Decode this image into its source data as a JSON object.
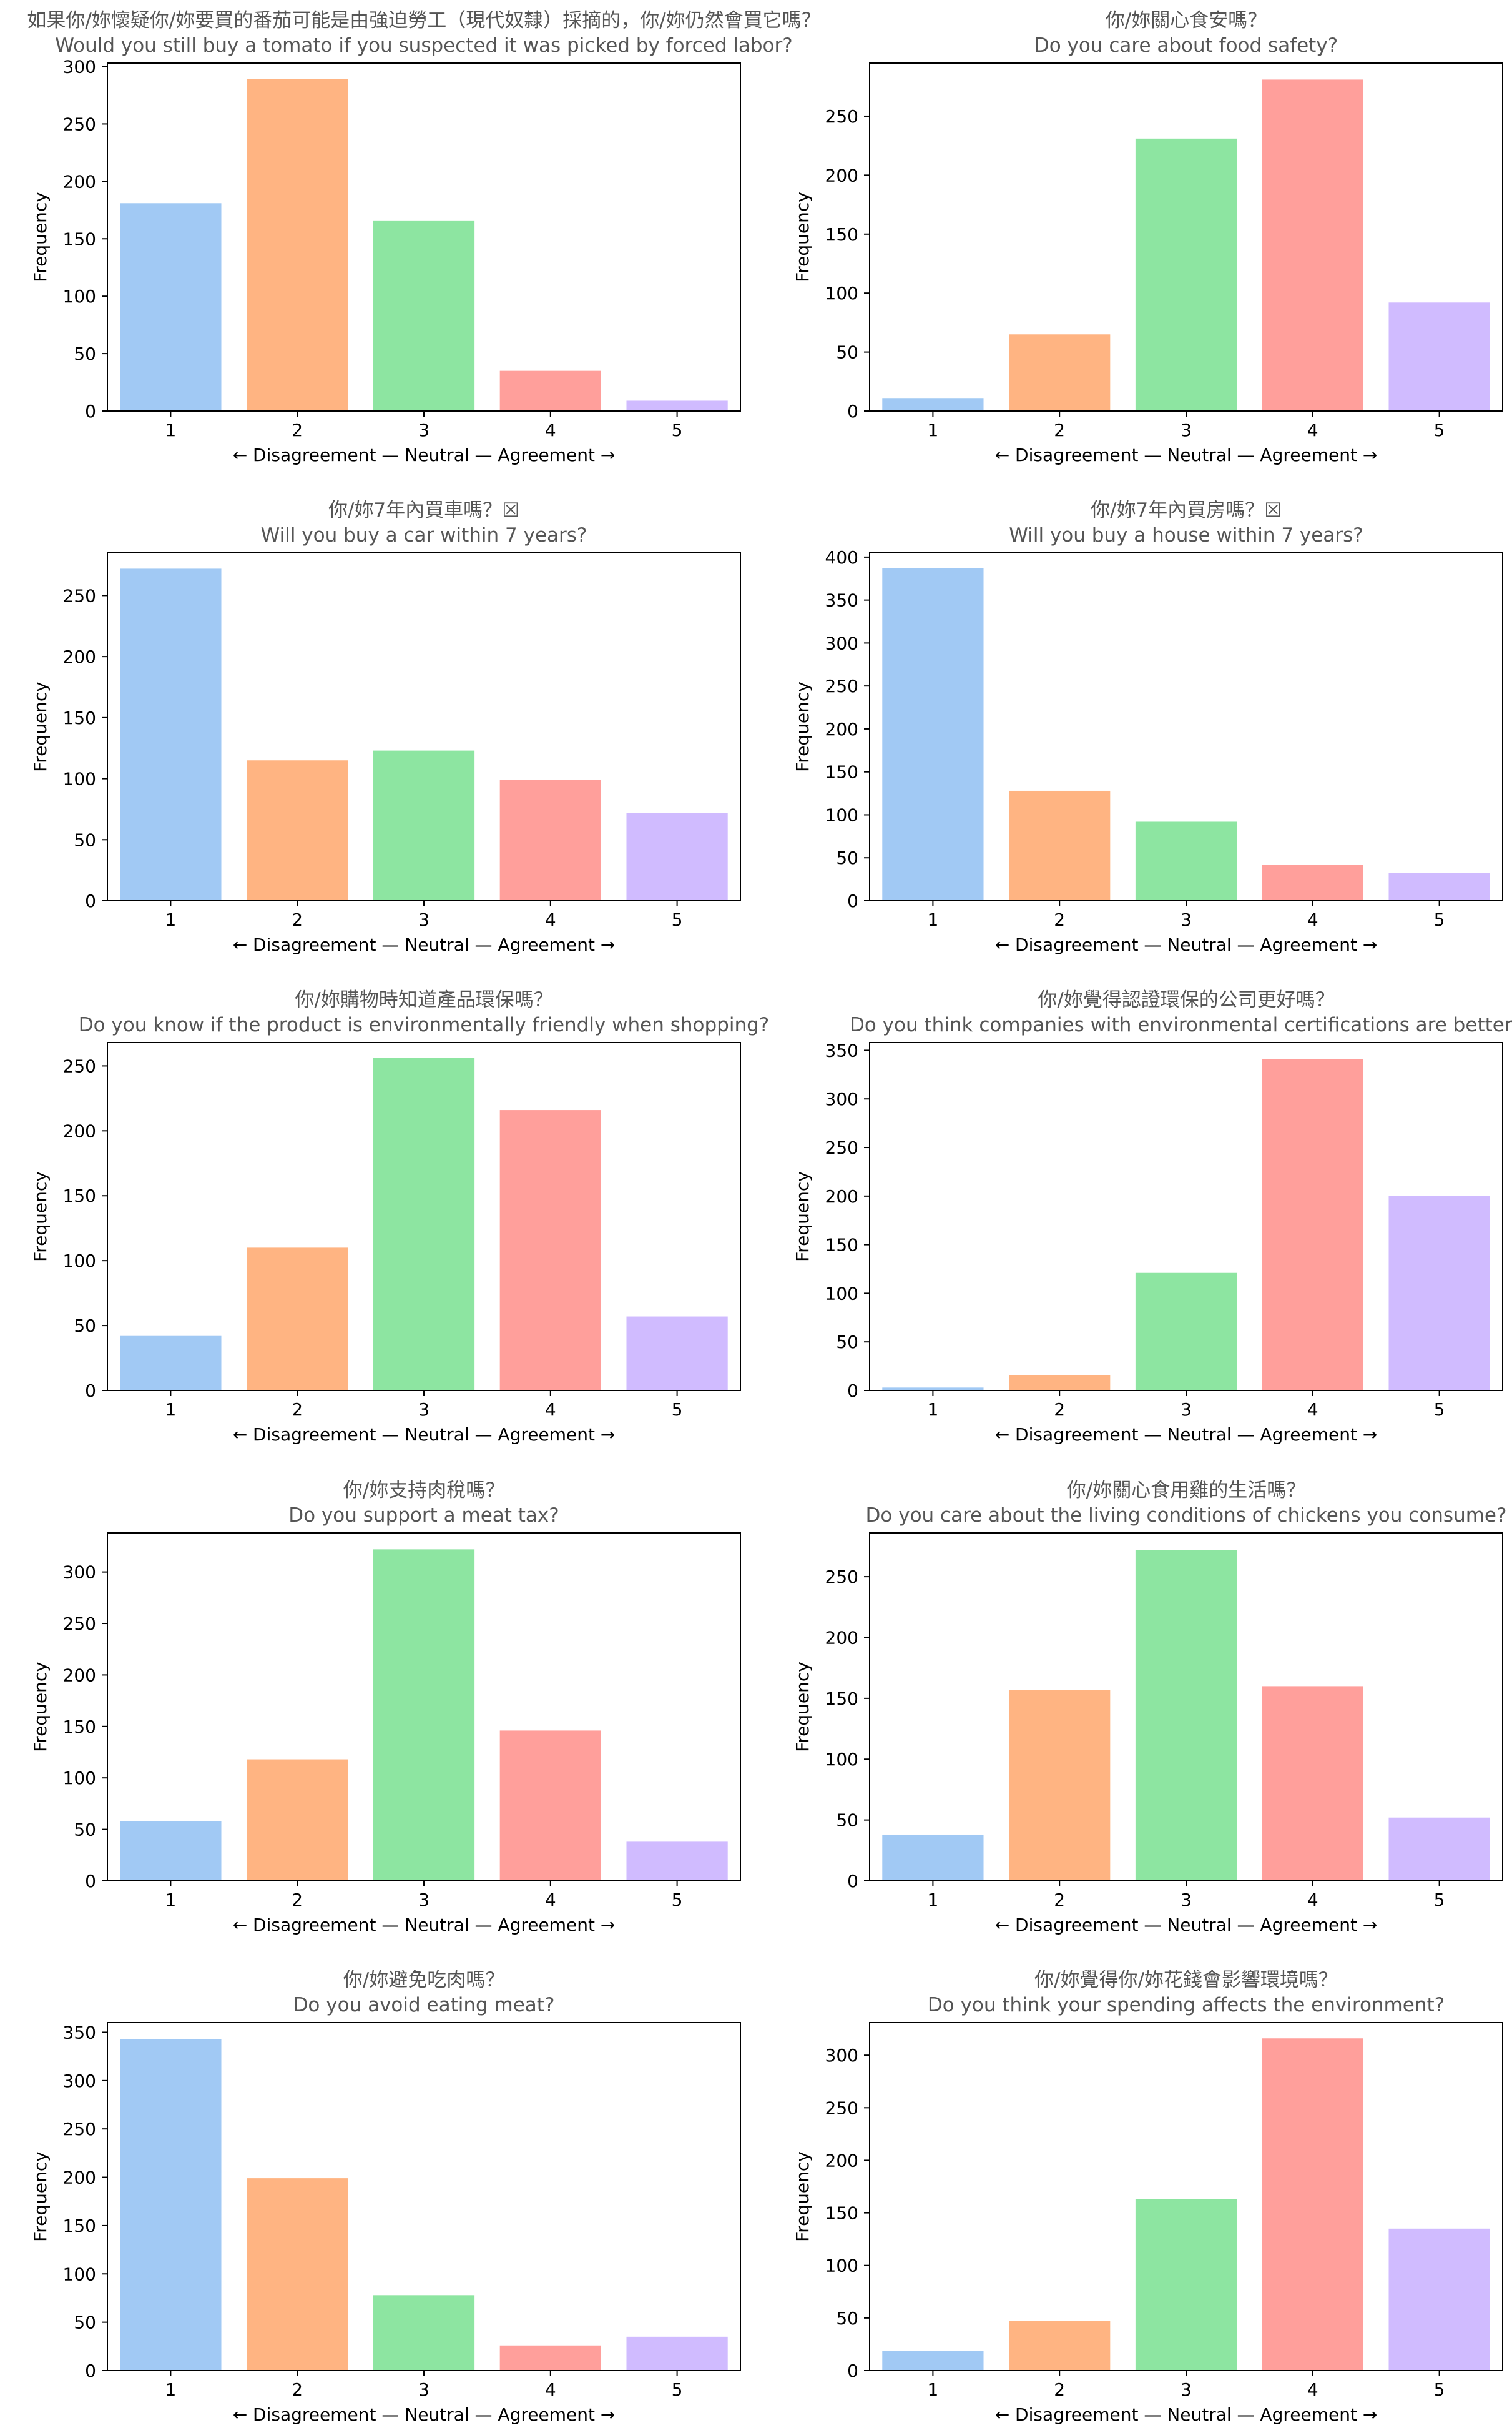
{
  "figure": {
    "shared_xlabel": "← Disagreement — Neutral — Agreement →",
    "shared_ylabel": "Frequency",
    "bar_colors": [
      "#a1c9f4",
      "#ffb482",
      "#8de5a1",
      "#ff9f9b",
      "#d0bbff"
    ],
    "missing_glyph": "☒"
  },
  "chart_data": [
    {
      "type": "bar",
      "title_zh": "如果你/妳懷疑你/妳要買的番茄可能是由強迫勞工（現代奴隸）採摘的，你/妳仍然會買它嗎？",
      "title_en": "Would you still buy a tomato if you suspected it was picked by forced labor?",
      "categories": [
        "1",
        "2",
        "3",
        "4",
        "5"
      ],
      "values": [
        181,
        289,
        166,
        35,
        9
      ],
      "ylim": [
        0,
        303
      ],
      "yticks": [
        0,
        50,
        100,
        150,
        200,
        250,
        300
      ],
      "xlabel": "← Disagreement — Neutral — Agreement →",
      "ylabel": "Frequency",
      "grid": false
    },
    {
      "type": "bar",
      "title_zh": "你/妳關心食安嗎？",
      "title_en": "Do you care about food safety?",
      "categories": [
        "1",
        "2",
        "3",
        "4",
        "5"
      ],
      "values": [
        11,
        65,
        231,
        281,
        92
      ],
      "ylim": [
        0,
        295
      ],
      "yticks": [
        0,
        50,
        100,
        150,
        200,
        250
      ],
      "xlabel": "← Disagreement — Neutral — Agreement →",
      "ylabel": "Frequency",
      "grid": false
    },
    {
      "type": "bar",
      "title_zh": "你/妳7年內買車嗎？",
      "title_en": "Will you buy a car within 7 years?",
      "categories": [
        "1",
        "2",
        "3",
        "4",
        "5"
      ],
      "values": [
        272,
        115,
        123,
        99,
        72
      ],
      "ylim": [
        0,
        285
      ],
      "yticks": [
        0,
        50,
        100,
        150,
        200,
        250
      ],
      "xlabel": "← Disagreement — Neutral — Agreement →",
      "ylabel": "Frequency",
      "grid": false
    },
    {
      "type": "bar",
      "title_zh": "你/妳7年內買房嗎？",
      "title_en": "Will you buy a house within 7 years?",
      "categories": [
        "1",
        "2",
        "3",
        "4",
        "5"
      ],
      "values": [
        387,
        128,
        92,
        42,
        32
      ],
      "ylim": [
        0,
        405
      ],
      "yticks": [
        0,
        50,
        100,
        150,
        200,
        250,
        300,
        350,
        400
      ],
      "xlabel": "← Disagreement — Neutral — Agreement →",
      "ylabel": "Frequency",
      "grid": false
    },
    {
      "type": "bar",
      "title_zh": "你/妳購物時知道產品環保嗎？",
      "title_en": "Do you know if the product is environmentally friendly when shopping?",
      "categories": [
        "1",
        "2",
        "3",
        "4",
        "5"
      ],
      "values": [
        42,
        110,
        256,
        216,
        57
      ],
      "ylim": [
        0,
        268
      ],
      "yticks": [
        0,
        50,
        100,
        150,
        200,
        250
      ],
      "xlabel": "← Disagreement — Neutral — Agreement →",
      "ylabel": "Frequency",
      "grid": false
    },
    {
      "type": "bar",
      "title_zh": "你/妳覺得認證環保的公司更好嗎？",
      "title_en": "Do you think companies with environmental certifications are better?",
      "categories": [
        "1",
        "2",
        "3",
        "4",
        "5"
      ],
      "values": [
        3,
        16,
        121,
        341,
        200
      ],
      "ylim": [
        0,
        358
      ],
      "yticks": [
        0,
        50,
        100,
        150,
        200,
        250,
        300,
        350
      ],
      "xlabel": "← Disagreement — Neutral — Agreement →",
      "ylabel": "Frequency",
      "grid": false
    },
    {
      "type": "bar",
      "title_zh": "你/妳支持肉稅嗎？",
      "title_en": "Do you support a meat tax?",
      "categories": [
        "1",
        "2",
        "3",
        "4",
        "5"
      ],
      "values": [
        58,
        118,
        322,
        146,
        38
      ],
      "ylim": [
        0,
        338
      ],
      "yticks": [
        0,
        50,
        100,
        150,
        200,
        250,
        300
      ],
      "xlabel": "← Disagreement — Neutral — Agreement →",
      "ylabel": "Frequency",
      "grid": false
    },
    {
      "type": "bar",
      "title_zh": "你/妳關心食用雞的生活嗎？",
      "title_en": "Do you care about the living conditions of chickens you consume?",
      "categories": [
        "1",
        "2",
        "3",
        "4",
        "5"
      ],
      "values": [
        38,
        157,
        272,
        160,
        52
      ],
      "ylim": [
        0,
        286
      ],
      "yticks": [
        0,
        50,
        100,
        150,
        200,
        250
      ],
      "xlabel": "← Disagreement — Neutral — Agreement →",
      "ylabel": "Frequency",
      "grid": false
    },
    {
      "type": "bar",
      "title_zh": "你/妳避免吃肉嗎？",
      "title_en": "Do you avoid eating meat?",
      "categories": [
        "1",
        "2",
        "3",
        "4",
        "5"
      ],
      "values": [
        343,
        199,
        78,
        26,
        35
      ],
      "ylim": [
        0,
        360
      ],
      "yticks": [
        0,
        50,
        100,
        150,
        200,
        250,
        300,
        350
      ],
      "xlabel": "← Disagreement — Neutral — Agreement →",
      "ylabel": "Frequency",
      "grid": false
    },
    {
      "type": "bar",
      "title_zh": "你/妳覺得你/妳花錢會影響環境嗎？",
      "title_en": "Do you think your spending affects the environment?",
      "categories": [
        "1",
        "2",
        "3",
        "4",
        "5"
      ],
      "values": [
        19,
        47,
        163,
        316,
        135
      ],
      "ylim": [
        0,
        331
      ],
      "yticks": [
        0,
        50,
        100,
        150,
        200,
        250,
        300
      ],
      "xlabel": "← Disagreement — Neutral — Agreement →",
      "ylabel": "Frequency",
      "grid": false
    }
  ]
}
